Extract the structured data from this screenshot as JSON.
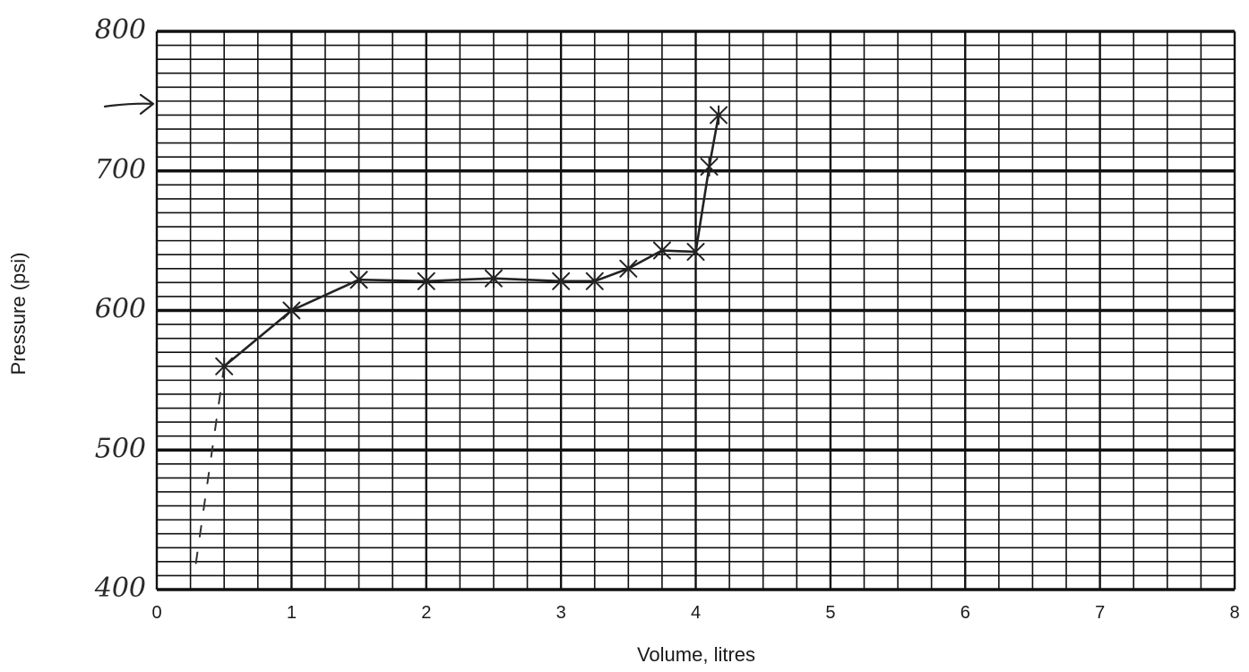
{
  "chart_data": {
    "type": "line",
    "title": "",
    "xlabel": "Volume, litres",
    "ylabel": "Pressure (psi)",
    "xlim": [
      0,
      8
    ],
    "ylim": [
      400,
      800
    ],
    "x_ticks": [
      "0",
      "1",
      "2",
      "3",
      "4",
      "5",
      "6",
      "7",
      "8"
    ],
    "y_ticks": [
      "400",
      "500",
      "600",
      "700",
      "800"
    ],
    "grid": true,
    "series": [
      {
        "points": [
          [
            0.5,
            560
          ],
          [
            1.0,
            600
          ],
          [
            1.5,
            622
          ],
          [
            2.0,
            621
          ],
          [
            2.5,
            623
          ],
          [
            3.0,
            621
          ],
          [
            3.25,
            621
          ],
          [
            3.5,
            630
          ],
          [
            3.75,
            643
          ],
          [
            4.0,
            642
          ],
          [
            4.1,
            703
          ],
          [
            4.17,
            740
          ]
        ]
      }
    ],
    "extrapolation": [
      [
        0.5,
        560
      ],
      [
        0.28,
        412
      ]
    ],
    "annotations": [
      {
        "type": "arrow",
        "y": 750
      }
    ]
  }
}
